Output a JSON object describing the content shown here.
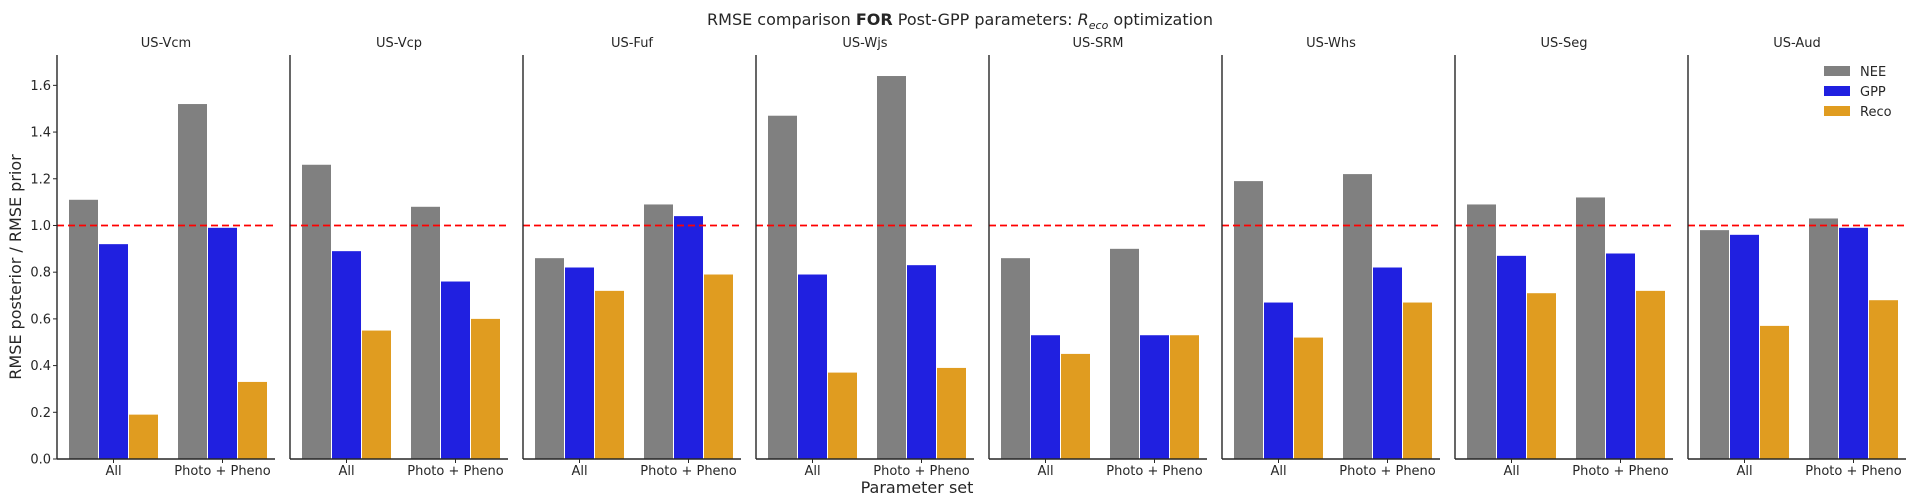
{
  "colors": {
    "NEE": "#808080",
    "GPP": "#2020e0",
    "Reco": "#e09c20",
    "reference_line": "#ff0000",
    "axis": "#262626"
  },
  "chart_data": {
    "type": "bar",
    "title_parts": [
      "RMSE comparison ",
      "FOR",
      " Post-GPP parameters: ",
      "R",
      "eco",
      " optimization"
    ],
    "xlabel": "Parameter set",
    "ylabel": "RMSE posterior / RMSE prior",
    "ylim": [
      0,
      1.73
    ],
    "yticks": [
      0.0,
      0.2,
      0.4,
      0.6,
      0.8,
      1.0,
      1.2,
      1.4,
      1.6
    ],
    "ytick_labels": [
      "0.0",
      "0.2",
      "0.4",
      "0.6",
      "0.8",
      "1.0",
      "1.2",
      "1.4",
      "1.6"
    ],
    "categories": [
      "All",
      "Photo + Pheno"
    ],
    "reference_line": 1.0,
    "legend": {
      "placement": "top-right",
      "entries": [
        "NEE",
        "GPP",
        "Reco"
      ]
    },
    "panels": [
      {
        "title": "US-Vcm",
        "series": [
          {
            "name": "NEE",
            "values": [
              1.11,
              1.52
            ]
          },
          {
            "name": "GPP",
            "values": [
              0.92,
              0.99
            ]
          },
          {
            "name": "Reco",
            "values": [
              0.19,
              0.33
            ]
          }
        ]
      },
      {
        "title": "US-Vcp",
        "series": [
          {
            "name": "NEE",
            "values": [
              1.26,
              1.08
            ]
          },
          {
            "name": "GPP",
            "values": [
              0.89,
              0.76
            ]
          },
          {
            "name": "Reco",
            "values": [
              0.55,
              0.6
            ]
          }
        ]
      },
      {
        "title": "US-Fuf",
        "series": [
          {
            "name": "NEE",
            "values": [
              0.86,
              1.09
            ]
          },
          {
            "name": "GPP",
            "values": [
              0.82,
              1.04
            ]
          },
          {
            "name": "Reco",
            "values": [
              0.72,
              0.79
            ]
          }
        ]
      },
      {
        "title": "US-Wjs",
        "series": [
          {
            "name": "NEE",
            "values": [
              1.47,
              1.64
            ]
          },
          {
            "name": "GPP",
            "values": [
              0.79,
              0.83
            ]
          },
          {
            "name": "Reco",
            "values": [
              0.37,
              0.39
            ]
          }
        ]
      },
      {
        "title": "US-SRM",
        "series": [
          {
            "name": "NEE",
            "values": [
              0.86,
              0.9
            ]
          },
          {
            "name": "GPP",
            "values": [
              0.53,
              0.53
            ]
          },
          {
            "name": "Reco",
            "values": [
              0.45,
              0.53
            ]
          }
        ]
      },
      {
        "title": "US-Whs",
        "series": [
          {
            "name": "NEE",
            "values": [
              1.19,
              1.22
            ]
          },
          {
            "name": "GPP",
            "values": [
              0.67,
              0.82
            ]
          },
          {
            "name": "Reco",
            "values": [
              0.52,
              0.67
            ]
          }
        ]
      },
      {
        "title": "US-Seg",
        "series": [
          {
            "name": "NEE",
            "values": [
              1.09,
              1.12
            ]
          },
          {
            "name": "GPP",
            "values": [
              0.87,
              0.88
            ]
          },
          {
            "name": "Reco",
            "values": [
              0.71,
              0.72
            ]
          }
        ]
      },
      {
        "title": "US-Aud",
        "series": [
          {
            "name": "NEE",
            "values": [
              0.98,
              1.03
            ]
          },
          {
            "name": "GPP",
            "values": [
              0.96,
              0.99
            ]
          },
          {
            "name": "Reco",
            "values": [
              0.57,
              0.68
            ]
          }
        ]
      }
    ]
  }
}
